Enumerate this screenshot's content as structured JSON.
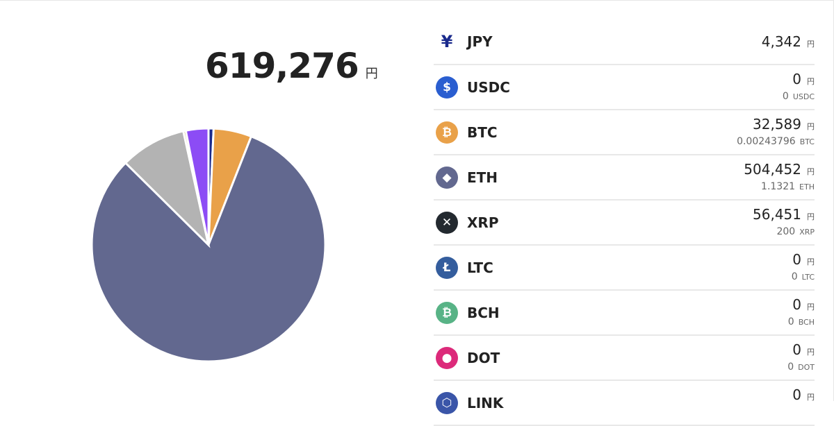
{
  "total": {
    "value": "619,276",
    "unit": "円"
  },
  "assets": [
    {
      "symbol": "JPY",
      "jpy": "4,342",
      "unit": "円",
      "qty": null,
      "icon": "yen-icon",
      "color": "#1a2a8c",
      "glyph": "¥"
    },
    {
      "symbol": "USDC",
      "jpy": "0",
      "unit": "円",
      "qty": "0",
      "icon": "usdc-icon",
      "color": "#2a5ed0",
      "glyph": "$"
    },
    {
      "symbol": "BTC",
      "jpy": "32,589",
      "unit": "円",
      "qty": "0.00243796",
      "icon": "bitcoin-icon",
      "color": "#e9a149",
      "glyph": "₿"
    },
    {
      "symbol": "ETH",
      "jpy": "504,452",
      "unit": "円",
      "qty": "1.1321",
      "icon": "ethereum-icon",
      "color": "#62688f",
      "glyph": "◆"
    },
    {
      "symbol": "XRP",
      "jpy": "56,451",
      "unit": "円",
      "qty": "200",
      "icon": "xrp-icon",
      "color": "#23292f",
      "glyph": "✕"
    },
    {
      "symbol": "LTC",
      "jpy": "0",
      "unit": "円",
      "qty": "0",
      "icon": "litecoin-icon",
      "color": "#345d9d",
      "glyph": "Ł"
    },
    {
      "symbol": "BCH",
      "jpy": "0",
      "unit": "円",
      "qty": "0",
      "icon": "bitcoin-cash-icon",
      "color": "#58b386",
      "glyph": "₿"
    },
    {
      "symbol": "DOT",
      "jpy": "0",
      "unit": "円",
      "qty": "0",
      "icon": "polkadot-icon",
      "color": "#dc2a7a",
      "glyph": "●"
    },
    {
      "symbol": "LINK",
      "jpy": "0",
      "unit": "円",
      "qty": null,
      "icon": "chainlink-icon",
      "color": "#3a55a8",
      "glyph": "⬡"
    }
  ],
  "chart_data": {
    "type": "pie",
    "slices": [
      {
        "name": "JPY",
        "value": 4342,
        "color": "#1a2a8c"
      },
      {
        "name": "BTC",
        "value": 32589,
        "color": "#e9a149"
      },
      {
        "name": "ETH",
        "value": 504452,
        "color": "#62688f"
      },
      {
        "name": "XRP",
        "value": 56451,
        "color": "#b3b3b3"
      },
      {
        "name": "",
        "value": 2100,
        "color": "#c8b46a"
      },
      {
        "name": "",
        "value": 19342,
        "color": "#8c4cf5"
      }
    ]
  }
}
